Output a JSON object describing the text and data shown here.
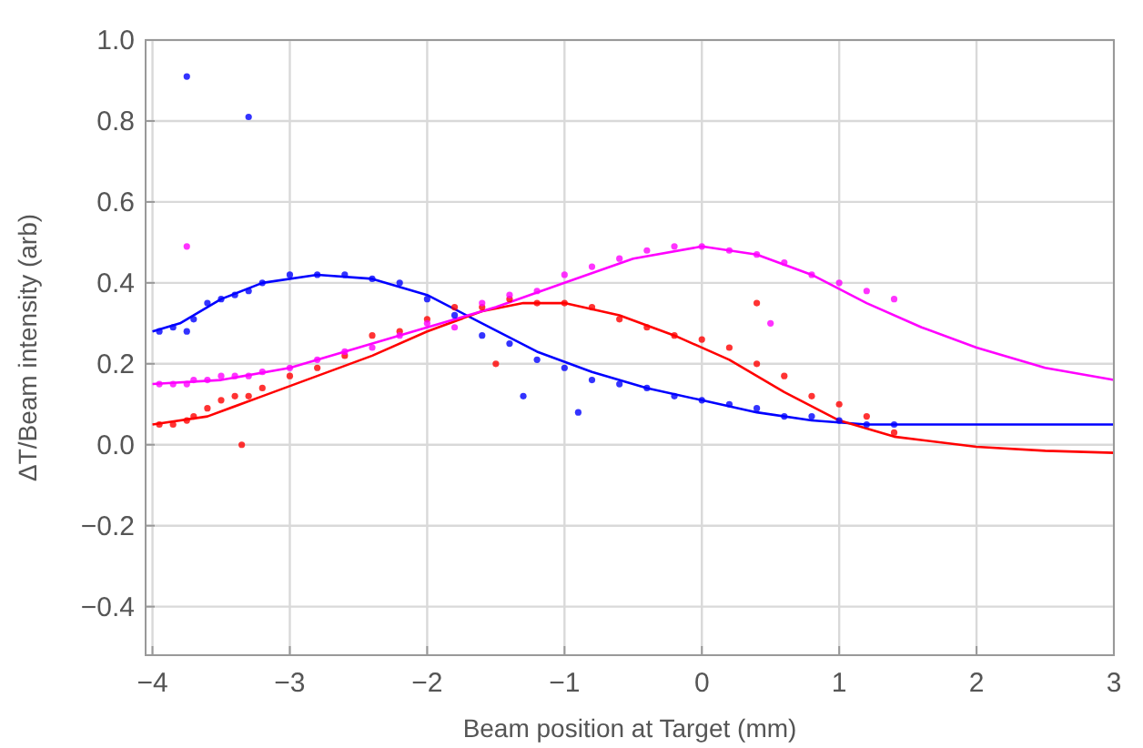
{
  "chart_data": {
    "type": "scatter",
    "xlabel": "Beam position at Target (mm)",
    "ylabel": "ΔT/Beam intensity (arb)",
    "xlim": [
      -4.05,
      3
    ],
    "ylim": [
      -0.52,
      1.0
    ],
    "xticks": [
      {
        "value": -4,
        "label": "−4"
      },
      {
        "value": -3,
        "label": "−3"
      },
      {
        "value": -2,
        "label": "−2"
      },
      {
        "value": -1,
        "label": "−1"
      },
      0,
      1,
      2,
      3
    ],
    "yticks": [
      {
        "value": -0.4,
        "label": "−0.4"
      },
      {
        "value": -0.2,
        "label": "−0.2"
      },
      {
        "value": 0,
        "label": "0.0"
      },
      {
        "value": 0.2,
        "label": "0.2"
      },
      {
        "value": 0.4,
        "label": "0.4"
      },
      {
        "value": 0.6,
        "label": "0.6"
      },
      {
        "value": 0.8,
        "label": "0.8"
      },
      {
        "value": 1,
        "label": "1.0"
      }
    ],
    "grid": true,
    "series": [
      {
        "color": "#0000ff",
        "x": [
          -3.95,
          -3.85,
          -3.75,
          -3.7,
          -3.6,
          -3.5,
          -3.4,
          -3.3,
          -3.2,
          -3.0,
          -2.8,
          -2.6,
          -2.4,
          -2.2,
          -2.0,
          -1.8,
          -1.6,
          -1.4,
          -1.2,
          -1.0,
          -0.8,
          -0.6,
          -0.4,
          -0.2,
          0.0,
          0.2,
          0.4,
          0.6,
          0.8,
          1.0,
          1.2,
          1.4,
          -3.75,
          -3.3,
          -0.9,
          -1.3
        ],
        "values": [
          0.28,
          0.29,
          0.28,
          0.31,
          0.35,
          0.36,
          0.37,
          0.38,
          0.4,
          0.42,
          0.42,
          0.42,
          0.41,
          0.4,
          0.36,
          0.32,
          0.27,
          0.25,
          0.21,
          0.19,
          0.16,
          0.15,
          0.14,
          0.12,
          0.11,
          0.1,
          0.09,
          0.07,
          0.07,
          0.06,
          0.05,
          0.05,
          0.91,
          0.81,
          0.08,
          0.12
        ]
      },
      {
        "color": "#ff0000",
        "x": [
          -3.95,
          -3.85,
          -3.75,
          -3.7,
          -3.6,
          -3.5,
          -3.4,
          -3.3,
          -3.2,
          -3.0,
          -2.8,
          -2.6,
          -2.4,
          -2.2,
          -2.0,
          -1.8,
          -1.6,
          -1.4,
          -1.2,
          -1.0,
          -0.8,
          -0.6,
          -0.4,
          -0.2,
          0.0,
          0.2,
          0.4,
          0.6,
          0.8,
          1.0,
          1.2,
          1.4,
          -3.35,
          -1.5,
          0.4
        ],
        "values": [
          0.05,
          0.05,
          0.06,
          0.07,
          0.09,
          0.11,
          0.12,
          0.12,
          0.14,
          0.17,
          0.19,
          0.22,
          0.27,
          0.28,
          0.31,
          0.34,
          0.34,
          0.36,
          0.35,
          0.35,
          0.34,
          0.31,
          0.29,
          0.27,
          0.26,
          0.24,
          0.2,
          0.17,
          0.12,
          0.1,
          0.07,
          0.03,
          0.0,
          0.2,
          0.35
        ]
      },
      {
        "color": "#ff00ff",
        "x": [
          -3.95,
          -3.85,
          -3.75,
          -3.7,
          -3.6,
          -3.5,
          -3.4,
          -3.3,
          -3.2,
          -3.0,
          -2.8,
          -2.6,
          -2.4,
          -2.2,
          -2.0,
          -1.8,
          -1.6,
          -1.4,
          -1.2,
          -1.0,
          -0.8,
          -0.6,
          -0.4,
          -0.2,
          0.0,
          0.2,
          0.4,
          0.6,
          0.8,
          1.0,
          1.2,
          1.4,
          0.5,
          -3.75
        ],
        "values": [
          0.15,
          0.15,
          0.15,
          0.16,
          0.16,
          0.17,
          0.17,
          0.17,
          0.18,
          0.19,
          0.21,
          0.23,
          0.24,
          0.27,
          0.3,
          0.29,
          0.35,
          0.37,
          0.38,
          0.42,
          0.44,
          0.46,
          0.48,
          0.49,
          0.49,
          0.48,
          0.47,
          0.45,
          0.42,
          0.4,
          0.38,
          0.36,
          0.3,
          0.49
        ]
      },
      {
        "type": "line",
        "color": "#0000ff",
        "x": [
          -4,
          -3.8,
          -3.5,
          -3.2,
          -2.8,
          -2.4,
          -2,
          -1.6,
          -1.2,
          -0.8,
          -0.4,
          0,
          0.4,
          0.8,
          1.2,
          1.5,
          3
        ],
        "values": [
          0.28,
          0.3,
          0.36,
          0.4,
          0.42,
          0.41,
          0.37,
          0.3,
          0.23,
          0.18,
          0.14,
          0.11,
          0.08,
          0.06,
          0.05,
          0.05,
          0.05
        ]
      },
      {
        "type": "line",
        "color": "#ff0000",
        "x": [
          -4,
          -3.6,
          -3.2,
          -2.8,
          -2.4,
          -2,
          -1.6,
          -1.3,
          -1,
          -0.6,
          -0.2,
          0.2,
          0.6,
          1,
          1.4,
          2,
          2.5,
          3
        ],
        "values": [
          0.05,
          0.07,
          0.12,
          0.17,
          0.22,
          0.28,
          0.33,
          0.35,
          0.35,
          0.32,
          0.27,
          0.21,
          0.13,
          0.06,
          0.02,
          -0.005,
          -0.015,
          -0.02
        ]
      },
      {
        "type": "line",
        "color": "#ff00ff",
        "x": [
          -4,
          -3.5,
          -3,
          -2.5,
          -2,
          -1.5,
          -1,
          -0.5,
          0,
          0.4,
          0.8,
          1.2,
          1.6,
          2,
          2.5,
          3
        ],
        "values": [
          0.15,
          0.16,
          0.19,
          0.24,
          0.29,
          0.34,
          0.4,
          0.46,
          0.49,
          0.47,
          0.42,
          0.35,
          0.29,
          0.24,
          0.19,
          0.16
        ]
      }
    ]
  }
}
